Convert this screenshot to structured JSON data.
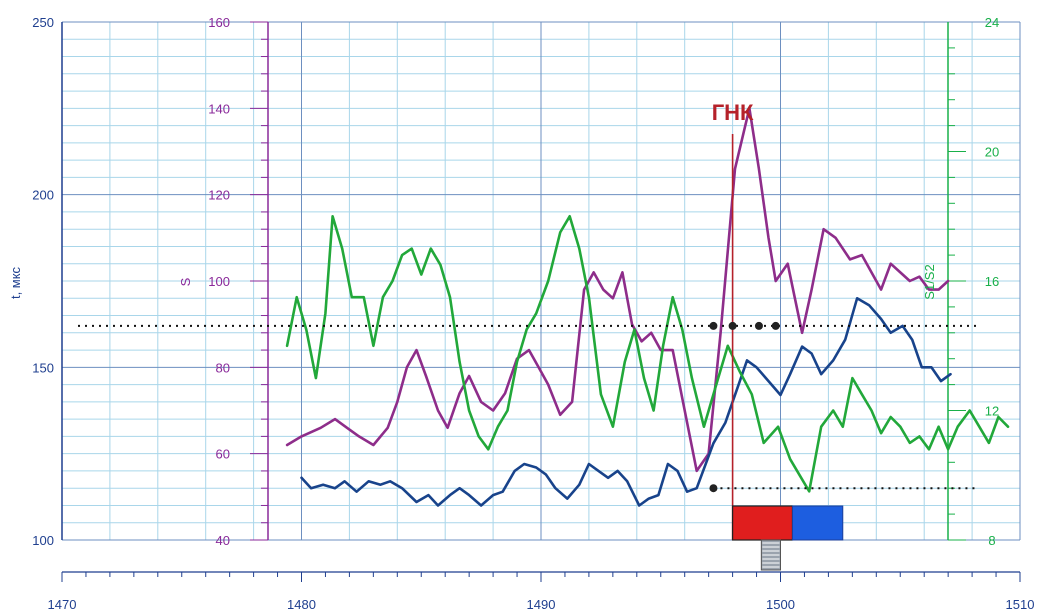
{
  "chart_data": {
    "type": "line",
    "x_axis": {
      "range": [
        1470,
        1510
      ],
      "ticks": [
        "1470",
        "1480",
        "1490",
        "1500",
        "1510"
      ]
    },
    "axes": {
      "t": {
        "label": "t, мкс",
        "range": [
          100,
          250
        ],
        "ticks": [
          "100",
          "150",
          "200",
          "250"
        ],
        "color": "#1f3f8f"
      },
      "S": {
        "label": "S",
        "range": [
          40,
          160
        ],
        "ticks": [
          "40",
          "60",
          "80",
          "100",
          "120",
          "140",
          "160"
        ],
        "color": "#8a2a9a"
      },
      "S1S2": {
        "label": "S1/S2",
        "range": [
          8,
          24
        ],
        "ticks": [
          "8",
          "12",
          "16",
          "20",
          "24"
        ],
        "color": "#19b04a"
      }
    },
    "grid": true,
    "series": [
      {
        "axis": "S",
        "color": "#8e2d8a",
        "points": [
          [
            1479.4,
            62
          ],
          [
            1480,
            64
          ],
          [
            1480.8,
            66
          ],
          [
            1481.4,
            68
          ],
          [
            1481.9,
            66
          ],
          [
            1482.4,
            64
          ],
          [
            1483,
            62
          ],
          [
            1483.6,
            66
          ],
          [
            1484,
            72
          ],
          [
            1484.4,
            80
          ],
          [
            1484.8,
            84
          ],
          [
            1485.2,
            78
          ],
          [
            1485.7,
            70
          ],
          [
            1486.1,
            66
          ],
          [
            1486.6,
            74
          ],
          [
            1487,
            78
          ],
          [
            1487.5,
            72
          ],
          [
            1488,
            70
          ],
          [
            1488.5,
            74
          ],
          [
            1489,
            82
          ],
          [
            1489.5,
            84
          ],
          [
            1489.9,
            80
          ],
          [
            1490.3,
            76
          ],
          [
            1490.8,
            69
          ],
          [
            1491.3,
            72
          ],
          [
            1491.8,
            98
          ],
          [
            1492.2,
            102
          ],
          [
            1492.6,
            98
          ],
          [
            1493,
            96
          ],
          [
            1493.4,
            102
          ],
          [
            1493.8,
            90
          ],
          [
            1494.2,
            86
          ],
          [
            1494.6,
            88
          ],
          [
            1495,
            84
          ],
          [
            1495.5,
            84
          ],
          [
            1496,
            70
          ],
          [
            1496.5,
            56
          ],
          [
            1497,
            60
          ],
          [
            1497.5,
            88
          ],
          [
            1498.1,
            126
          ],
          [
            1498.7,
            140
          ],
          [
            1499.1,
            126
          ],
          [
            1499.5,
            110
          ],
          [
            1499.8,
            100
          ],
          [
            1500.3,
            104
          ],
          [
            1500.6,
            96
          ],
          [
            1500.9,
            88
          ],
          [
            1501.3,
            98
          ],
          [
            1501.8,
            112
          ],
          [
            1502.3,
            110
          ],
          [
            1502.9,
            105
          ],
          [
            1503.4,
            106
          ],
          [
            1503.8,
            102
          ],
          [
            1504.2,
            98
          ],
          [
            1504.6,
            104
          ],
          [
            1505,
            102
          ],
          [
            1505.4,
            100
          ],
          [
            1505.8,
            101
          ],
          [
            1506.2,
            98
          ],
          [
            1506.6,
            98
          ],
          [
            1507,
            100
          ]
        ]
      },
      {
        "axis": "t",
        "color": "#18438b",
        "points": [
          [
            1480,
            118
          ],
          [
            1480.4,
            115
          ],
          [
            1480.9,
            116
          ],
          [
            1481.4,
            115
          ],
          [
            1481.8,
            117
          ],
          [
            1482.3,
            114
          ],
          [
            1482.8,
            117
          ],
          [
            1483.3,
            116
          ],
          [
            1483.7,
            117
          ],
          [
            1484.2,
            115
          ],
          [
            1484.8,
            111
          ],
          [
            1485.3,
            113
          ],
          [
            1485.7,
            110
          ],
          [
            1486.2,
            113
          ],
          [
            1486.6,
            115
          ],
          [
            1487,
            113
          ],
          [
            1487.5,
            110
          ],
          [
            1488,
            113
          ],
          [
            1488.4,
            114
          ],
          [
            1488.9,
            120
          ],
          [
            1489.3,
            122
          ],
          [
            1489.8,
            121
          ],
          [
            1490.2,
            119
          ],
          [
            1490.6,
            115
          ],
          [
            1491.1,
            112
          ],
          [
            1491.6,
            116
          ],
          [
            1492,
            122
          ],
          [
            1492.4,
            120
          ],
          [
            1492.8,
            118
          ],
          [
            1493.2,
            120
          ],
          [
            1493.6,
            117
          ],
          [
            1494.1,
            110
          ],
          [
            1494.5,
            112
          ],
          [
            1494.9,
            113
          ],
          [
            1495.3,
            122
          ],
          [
            1495.7,
            120
          ],
          [
            1496.1,
            114
          ],
          [
            1496.5,
            115
          ],
          [
            1497.2,
            128
          ],
          [
            1497.7,
            134
          ],
          [
            1498.2,
            144
          ],
          [
            1498.6,
            152
          ],
          [
            1499,
            150
          ],
          [
            1499.5,
            146
          ],
          [
            1500,
            142
          ],
          [
            1500.4,
            148
          ],
          [
            1500.9,
            156
          ],
          [
            1501.3,
            154
          ],
          [
            1501.7,
            148
          ],
          [
            1502.2,
            152
          ],
          [
            1502.7,
            158
          ],
          [
            1503.2,
            170
          ],
          [
            1503.7,
            168
          ],
          [
            1504.2,
            164
          ],
          [
            1504.6,
            160
          ],
          [
            1505.1,
            162
          ],
          [
            1505.5,
            158
          ],
          [
            1505.9,
            150
          ],
          [
            1506.3,
            150
          ],
          [
            1506.7,
            146
          ],
          [
            1507.1,
            148
          ]
        ]
      },
      {
        "axis": "S1S2",
        "color": "#22a83a",
        "points": [
          [
            1479.4,
            14
          ],
          [
            1479.8,
            15.5
          ],
          [
            1480.2,
            14.5
          ],
          [
            1480.6,
            13
          ],
          [
            1481,
            15
          ],
          [
            1481.3,
            18
          ],
          [
            1481.7,
            17
          ],
          [
            1482.1,
            15.5
          ],
          [
            1482.6,
            15.5
          ],
          [
            1483,
            14
          ],
          [
            1483.4,
            15.5
          ],
          [
            1483.8,
            16
          ],
          [
            1484.2,
            16.8
          ],
          [
            1484.6,
            17
          ],
          [
            1485,
            16.2
          ],
          [
            1485.4,
            17
          ],
          [
            1485.8,
            16.5
          ],
          [
            1486.2,
            15.5
          ],
          [
            1486.6,
            13.5
          ],
          [
            1487,
            12
          ],
          [
            1487.4,
            11.2
          ],
          [
            1487.8,
            10.8
          ],
          [
            1488.2,
            11.5
          ],
          [
            1488.6,
            12
          ],
          [
            1489,
            13.5
          ],
          [
            1489.4,
            14.5
          ],
          [
            1489.8,
            15
          ],
          [
            1490.3,
            16
          ],
          [
            1490.8,
            17.5
          ],
          [
            1491.2,
            18
          ],
          [
            1491.6,
            17
          ],
          [
            1492,
            15.5
          ],
          [
            1492.5,
            12.5
          ],
          [
            1493,
            11.5
          ],
          [
            1493.5,
            13.5
          ],
          [
            1493.9,
            14.5
          ],
          [
            1494.3,
            13
          ],
          [
            1494.7,
            12
          ],
          [
            1495.1,
            14
          ],
          [
            1495.5,
            15.5
          ],
          [
            1495.9,
            14.5
          ],
          [
            1496.3,
            13
          ],
          [
            1496.8,
            11.5
          ],
          [
            1497.4,
            13
          ],
          [
            1497.8,
            14
          ],
          [
            1498.3,
            13.2
          ],
          [
            1498.8,
            12.5
          ],
          [
            1499.3,
            11
          ],
          [
            1499.9,
            11.5
          ],
          [
            1500.4,
            10.5
          ],
          [
            1500.8,
            10
          ],
          [
            1501.2,
            9.5
          ],
          [
            1501.7,
            11.5
          ],
          [
            1502.2,
            12
          ],
          [
            1502.6,
            11.5
          ],
          [
            1503,
            13
          ],
          [
            1503.4,
            12.5
          ],
          [
            1503.8,
            12
          ],
          [
            1504.2,
            11.3
          ],
          [
            1504.6,
            11.8
          ],
          [
            1505,
            11.5
          ],
          [
            1505.4,
            11
          ],
          [
            1505.8,
            11.2
          ],
          [
            1506.2,
            10.8
          ],
          [
            1506.6,
            11.5
          ],
          [
            1507,
            10.8
          ],
          [
            1507.4,
            11.5
          ],
          [
            1507.9,
            12
          ],
          [
            1508.3,
            11.5
          ],
          [
            1508.7,
            11
          ],
          [
            1509.1,
            11.8
          ],
          [
            1509.5,
            11.5
          ]
        ]
      }
    ],
    "annotations": {
      "contact_label": "ГНК",
      "contact_x": 1498,
      "contact_color": "#b5212a",
      "upper_dotted_level_t": 162,
      "lower_dotted_level_t": 115,
      "lower_dotted_from_x": 1497.2,
      "red_block": {
        "x_from": 1498,
        "x_to": 1500.5,
        "color": "#e01e1e"
      },
      "blue_block": {
        "x_from": 1500.5,
        "x_to": 1502.6,
        "color": "#1d5ee0"
      },
      "hatched_block": {
        "x_from": 1499.2,
        "x_to": 1500,
        "color": "#9aa3ad"
      },
      "markers_x": [
        1497.2,
        1498,
        1499.1,
        1499.8
      ]
    }
  }
}
